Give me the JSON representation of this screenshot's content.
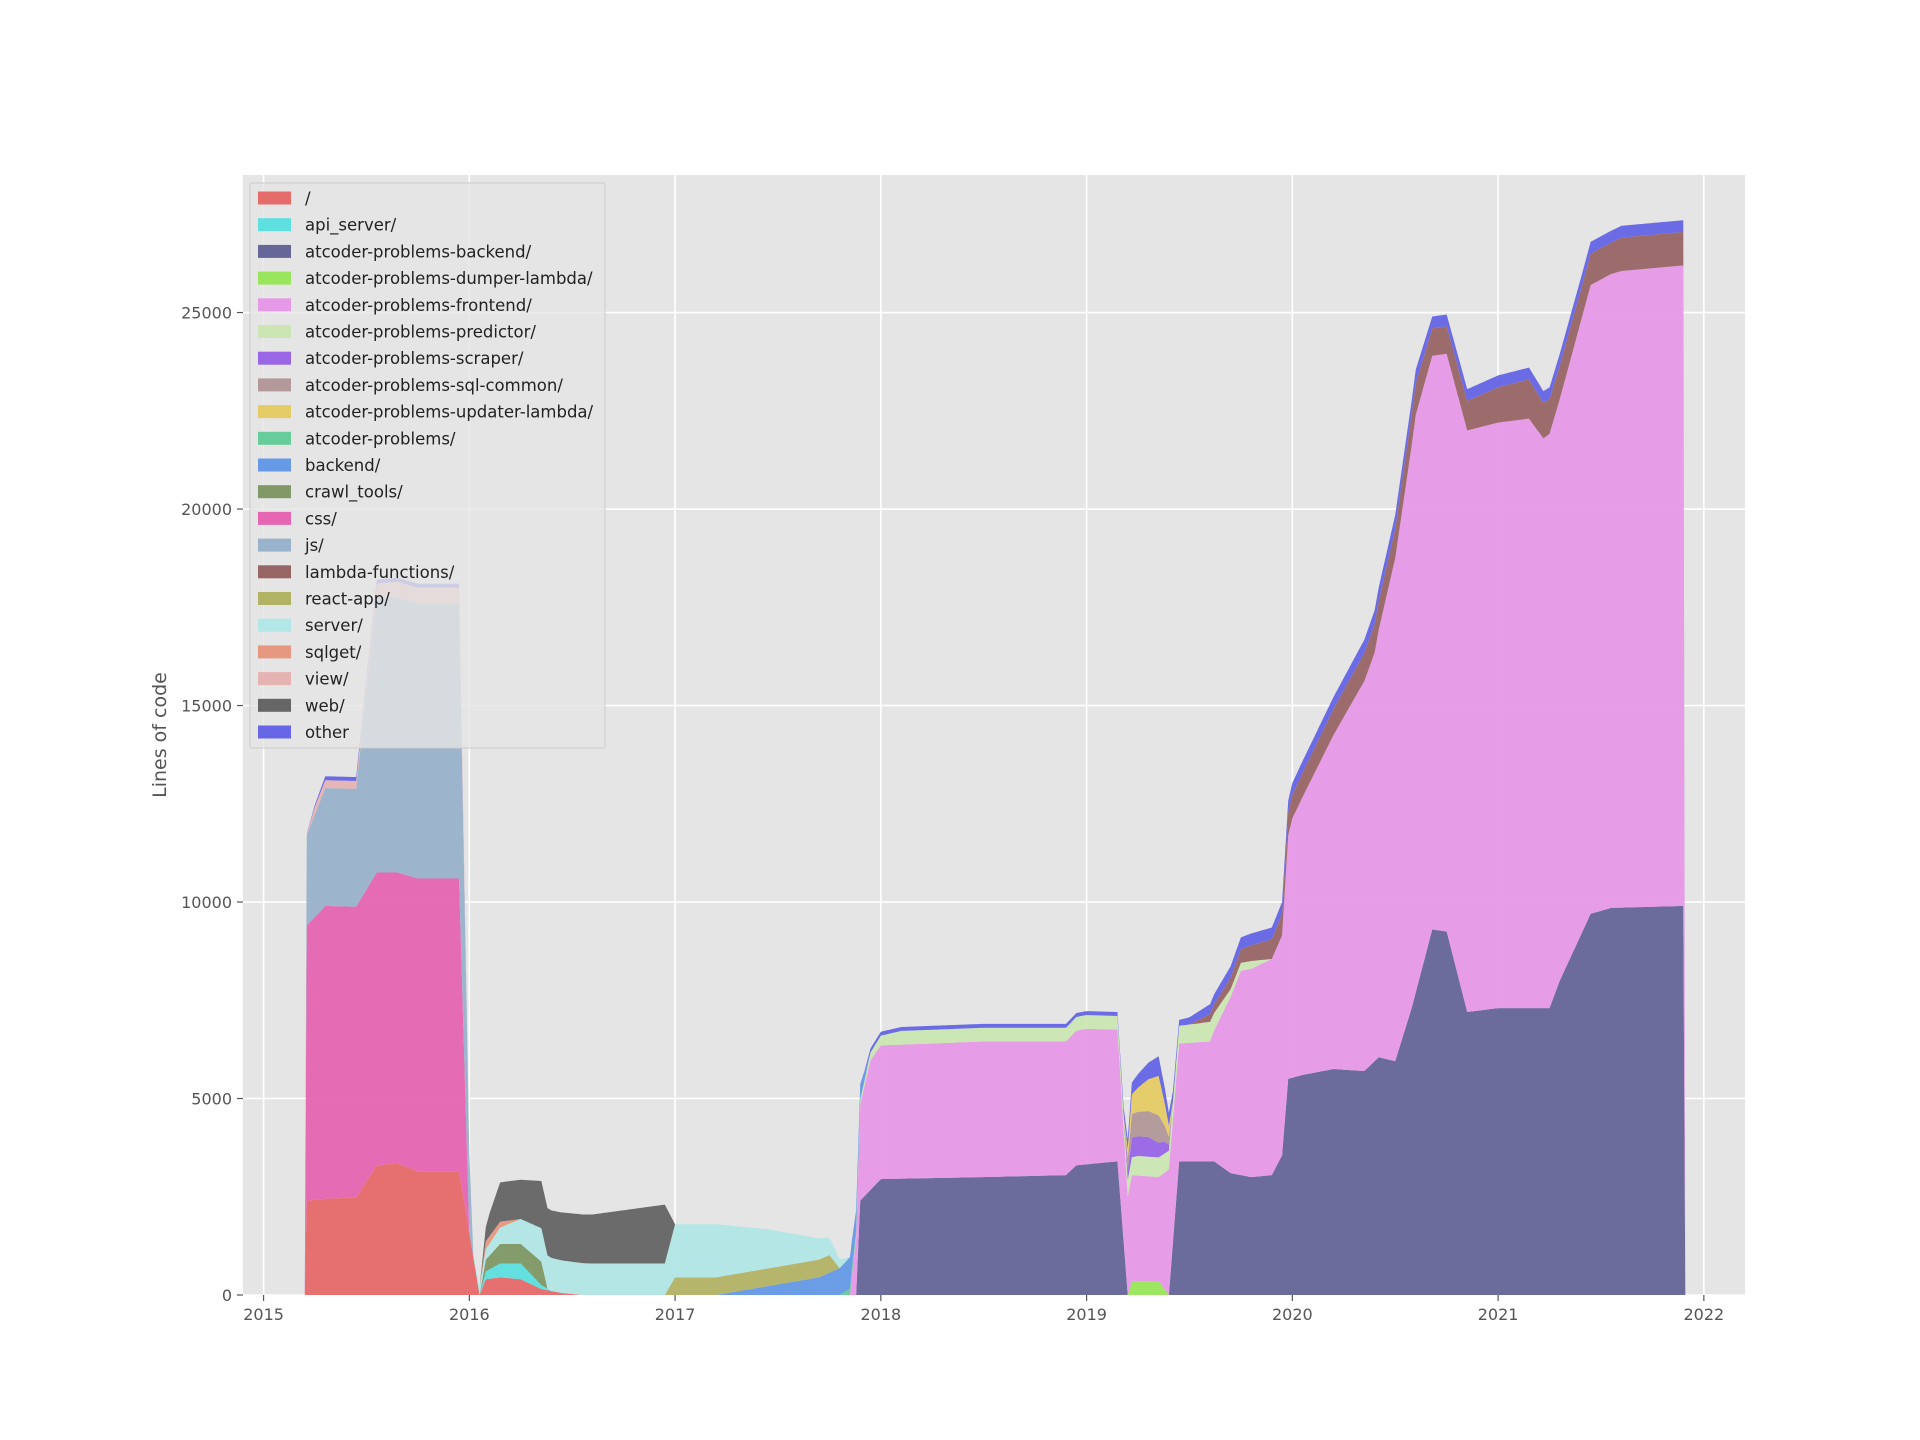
{
  "chart_data": {
    "type": "area",
    "stacked": true,
    "title": "",
    "xlabel": "",
    "ylabel": "Lines of code",
    "xlim": [
      2014.9,
      2022.2
    ],
    "ylim": [
      0,
      28500
    ],
    "x_ticks": [
      2015,
      2016,
      2017,
      2018,
      2019,
      2020,
      2021,
      2022
    ],
    "y_ticks": [
      0,
      5000,
      10000,
      15000,
      20000,
      25000
    ],
    "grid": true,
    "legend_position": "top-left",
    "series": [
      {
        "name": "/",
        "color": "#e66b6b",
        "points": [
          [
            2015.2,
            0
          ],
          [
            2015.21,
            2400
          ],
          [
            2015.3,
            2450
          ],
          [
            2015.45,
            2480
          ],
          [
            2015.55,
            3300
          ],
          [
            2015.65,
            3350
          ],
          [
            2015.75,
            3150
          ],
          [
            2015.95,
            3150
          ],
          [
            2016.05,
            0
          ],
          [
            2016.08,
            400
          ],
          [
            2016.15,
            450
          ],
          [
            2016.25,
            400
          ],
          [
            2016.35,
            150
          ],
          [
            2016.45,
            50
          ],
          [
            2016.55,
            0
          ]
        ]
      },
      {
        "name": "api_server/",
        "color": "#5edfe0",
        "points": [
          [
            2016.05,
            0
          ],
          [
            2016.08,
            200
          ],
          [
            2016.15,
            350
          ],
          [
            2016.25,
            400
          ],
          [
            2016.35,
            100
          ],
          [
            2016.4,
            0
          ]
        ]
      },
      {
        "name": "atcoder-problems-backend/",
        "color": "#666699",
        "points": [
          [
            2017.88,
            0
          ],
          [
            2017.9,
            2400
          ],
          [
            2018.0,
            2950
          ],
          [
            2018.5,
            3000
          ],
          [
            2018.9,
            3050
          ],
          [
            2018.95,
            3300
          ],
          [
            2019.15,
            3400
          ],
          [
            2019.2,
            0
          ],
          [
            2019.4,
            0
          ],
          [
            2019.45,
            3400
          ],
          [
            2019.62,
            3400
          ],
          [
            2019.7,
            3100
          ],
          [
            2019.8,
            3000
          ],
          [
            2019.9,
            3050
          ],
          [
            2019.95,
            3550
          ],
          [
            2019.98,
            5500
          ],
          [
            2020.05,
            5600
          ],
          [
            2020.2,
            5750
          ],
          [
            2020.35,
            5700
          ],
          [
            2020.42,
            6050
          ],
          [
            2020.5,
            5950
          ],
          [
            2020.58,
            7300
          ],
          [
            2020.68,
            9300
          ],
          [
            2020.75,
            9250
          ],
          [
            2020.85,
            7200
          ],
          [
            2021.0,
            7300
          ],
          [
            2021.25,
            7300
          ],
          [
            2021.3,
            8000
          ],
          [
            2021.45,
            9700
          ],
          [
            2021.55,
            9850
          ],
          [
            2021.9,
            9900
          ]
        ]
      },
      {
        "name": "atcoder-problems-dumper-lambda/",
        "color": "#99e65c",
        "points": [
          [
            2019.2,
            0
          ],
          [
            2019.22,
            350
          ],
          [
            2019.35,
            350
          ],
          [
            2019.4,
            0
          ]
        ]
      },
      {
        "name": "atcoder-problems-frontend/",
        "color": "#e699e6",
        "points": [
          [
            2017.85,
            0
          ],
          [
            2017.9,
            2450
          ],
          [
            2017.95,
            3300
          ],
          [
            2018.0,
            3400
          ],
          [
            2018.5,
            3450
          ],
          [
            2018.9,
            3400
          ],
          [
            2019.0,
            3450
          ],
          [
            2019.15,
            3350
          ],
          [
            2019.2,
            2500
          ],
          [
            2019.22,
            2700
          ],
          [
            2019.35,
            2650
          ],
          [
            2019.4,
            3200
          ],
          [
            2019.45,
            3000
          ],
          [
            2019.6,
            3050
          ],
          [
            2019.75,
            5200
          ],
          [
            2019.95,
            5600
          ],
          [
            2020.0,
            6600
          ],
          [
            2020.2,
            8500
          ],
          [
            2020.4,
            10400
          ],
          [
            2020.5,
            12800
          ],
          [
            2020.6,
            14700
          ],
          [
            2020.68,
            14600
          ],
          [
            2020.75,
            14700
          ],
          [
            2020.85,
            14800
          ],
          [
            2021.0,
            14900
          ],
          [
            2021.15,
            15000
          ],
          [
            2021.22,
            14500
          ],
          [
            2021.3,
            14800
          ],
          [
            2021.45,
            16000
          ],
          [
            2021.6,
            16200
          ],
          [
            2021.9,
            16300
          ]
        ]
      },
      {
        "name": "atcoder-problems-predictor/",
        "color": "#cce6b3",
        "points": [
          [
            2017.85,
            0
          ],
          [
            2017.95,
            200
          ],
          [
            2018.1,
            350
          ],
          [
            2019.15,
            350
          ],
          [
            2019.25,
            500
          ],
          [
            2019.35,
            500
          ],
          [
            2019.45,
            450
          ],
          [
            2019.6,
            500
          ],
          [
            2019.7,
            200
          ],
          [
            2019.8,
            200
          ],
          [
            2019.9,
            0
          ]
        ]
      },
      {
        "name": "atcoder-problems-scraper/",
        "color": "#9966e6",
        "points": [
          [
            2019.18,
            0
          ],
          [
            2019.22,
            500
          ],
          [
            2019.3,
            500
          ],
          [
            2019.38,
            300
          ],
          [
            2019.42,
            0
          ]
        ]
      },
      {
        "name": "atcoder-problems-sql-common/",
        "color": "#b39999",
        "points": [
          [
            2019.18,
            0
          ],
          [
            2019.22,
            600
          ],
          [
            2019.35,
            700
          ],
          [
            2019.42,
            0
          ]
        ]
      },
      {
        "name": "atcoder-problems-updater-lambda/",
        "color": "#e6cc66",
        "points": [
          [
            2019.18,
            0
          ],
          [
            2019.22,
            500
          ],
          [
            2019.35,
            1000
          ],
          [
            2019.42,
            0
          ]
        ]
      },
      {
        "name": "atcoder-problems/",
        "color": "#66cc99",
        "points": [
          [
            2017.8,
            0
          ],
          [
            2017.86,
            200
          ],
          [
            2017.92,
            0
          ]
        ]
      },
      {
        "name": "backend/",
        "color": "#6699e6",
        "points": [
          [
            2017.2,
            0
          ],
          [
            2017.7,
            450
          ],
          [
            2017.85,
            800
          ],
          [
            2017.88,
            500
          ],
          [
            2017.95,
            0
          ]
        ]
      },
      {
        "name": "crawl_tools/",
        "color": "#809966",
        "points": [
          [
            2016.05,
            0
          ],
          [
            2016.08,
            300
          ],
          [
            2016.15,
            500
          ],
          [
            2016.25,
            500
          ],
          [
            2016.35,
            600
          ],
          [
            2016.38,
            0
          ]
        ]
      },
      {
        "name": "css/",
        "color": "#e666b3",
        "points": [
          [
            2015.2,
            0
          ],
          [
            2015.21,
            7000
          ],
          [
            2015.3,
            7450
          ],
          [
            2015.45,
            7400
          ],
          [
            2015.55,
            7450
          ],
          [
            2015.65,
            7400
          ],
          [
            2015.75,
            7450
          ],
          [
            2015.95,
            7450
          ],
          [
            2016.0,
            0
          ]
        ]
      },
      {
        "name": "js/",
        "color": "#99b3cc",
        "points": [
          [
            2015.2,
            0
          ],
          [
            2015.21,
            2300
          ],
          [
            2015.3,
            3000
          ],
          [
            2015.45,
            3000
          ],
          [
            2015.55,
            7000
          ],
          [
            2015.65,
            7000
          ],
          [
            2015.75,
            7000
          ],
          [
            2015.95,
            7000
          ],
          [
            2016.02,
            0
          ]
        ]
      },
      {
        "name": "lambda-functions/",
        "color": "#996666",
        "points": [
          [
            2019.5,
            0
          ],
          [
            2019.6,
            200
          ],
          [
            2019.8,
            400
          ],
          [
            2020.0,
            600
          ],
          [
            2020.3,
            700
          ],
          [
            2020.5,
            750
          ],
          [
            2020.6,
            800
          ],
          [
            2020.68,
            700
          ],
          [
            2020.75,
            700
          ],
          [
            2020.85,
            750
          ],
          [
            2021.0,
            900
          ],
          [
            2021.15,
            1000
          ],
          [
            2021.22,
            900
          ],
          [
            2021.4,
            800
          ],
          [
            2021.55,
            800
          ],
          [
            2021.6,
            850
          ],
          [
            2021.9,
            850
          ]
        ]
      },
      {
        "name": "react-app/",
        "color": "#b3b366",
        "points": [
          [
            2016.95,
            0
          ],
          [
            2017.0,
            450
          ],
          [
            2017.75,
            450
          ],
          [
            2017.8,
            0
          ]
        ]
      },
      {
        "name": "server/",
        "color": "#b3e6e6",
        "points": [
          [
            2016.0,
            0
          ],
          [
            2016.05,
            200
          ],
          [
            2016.35,
            850
          ],
          [
            2016.6,
            800
          ],
          [
            2016.95,
            800
          ],
          [
            2017.0,
            1350
          ],
          [
            2017.2,
            1350
          ],
          [
            2017.45,
            1000
          ],
          [
            2017.75,
            450
          ],
          [
            2017.85,
            0
          ]
        ]
      },
      {
        "name": "sqlget/",
        "color": "#e69980",
        "points": [
          [
            2016.05,
            0
          ],
          [
            2016.08,
            200
          ],
          [
            2016.15,
            150
          ],
          [
            2016.25,
            0
          ]
        ]
      },
      {
        "name": "view/",
        "color": "#e6b3b3",
        "points": [
          [
            2015.2,
            0
          ],
          [
            2015.25,
            200
          ],
          [
            2015.45,
            200
          ],
          [
            2015.55,
            350
          ],
          [
            2015.65,
            400
          ],
          [
            2015.95,
            400
          ],
          [
            2016.0,
            0
          ]
        ]
      },
      {
        "name": "web/",
        "color": "#666666",
        "points": [
          [
            2016.05,
            0
          ],
          [
            2016.1,
            600
          ],
          [
            2016.15,
            1000
          ],
          [
            2016.25,
            1000
          ],
          [
            2016.35,
            1200
          ],
          [
            2016.6,
            1250
          ],
          [
            2016.95,
            1500
          ],
          [
            2017.0,
            0
          ]
        ]
      },
      {
        "name": "other",
        "color": "#6666e6",
        "points": [
          [
            2015.2,
            0
          ],
          [
            2015.3,
            100
          ],
          [
            2015.95,
            100
          ],
          [
            2016.0,
            0
          ],
          [
            2016.05,
            0
          ],
          [
            2017.9,
            0
          ],
          [
            2017.95,
            100
          ],
          [
            2019.15,
            100
          ],
          [
            2019.22,
            300
          ],
          [
            2019.35,
            500
          ],
          [
            2019.45,
            150
          ],
          [
            2019.6,
            250
          ],
          [
            2019.75,
            300
          ],
          [
            2019.95,
            300
          ],
          [
            2020.2,
            300
          ],
          [
            2020.4,
            350
          ],
          [
            2020.6,
            350
          ],
          [
            2020.68,
            300
          ],
          [
            2020.8,
            300
          ],
          [
            2021.0,
            300
          ],
          [
            2021.2,
            300
          ],
          [
            2021.4,
            300
          ],
          [
            2021.55,
            300
          ],
          [
            2021.9,
            300
          ]
        ]
      }
    ]
  }
}
